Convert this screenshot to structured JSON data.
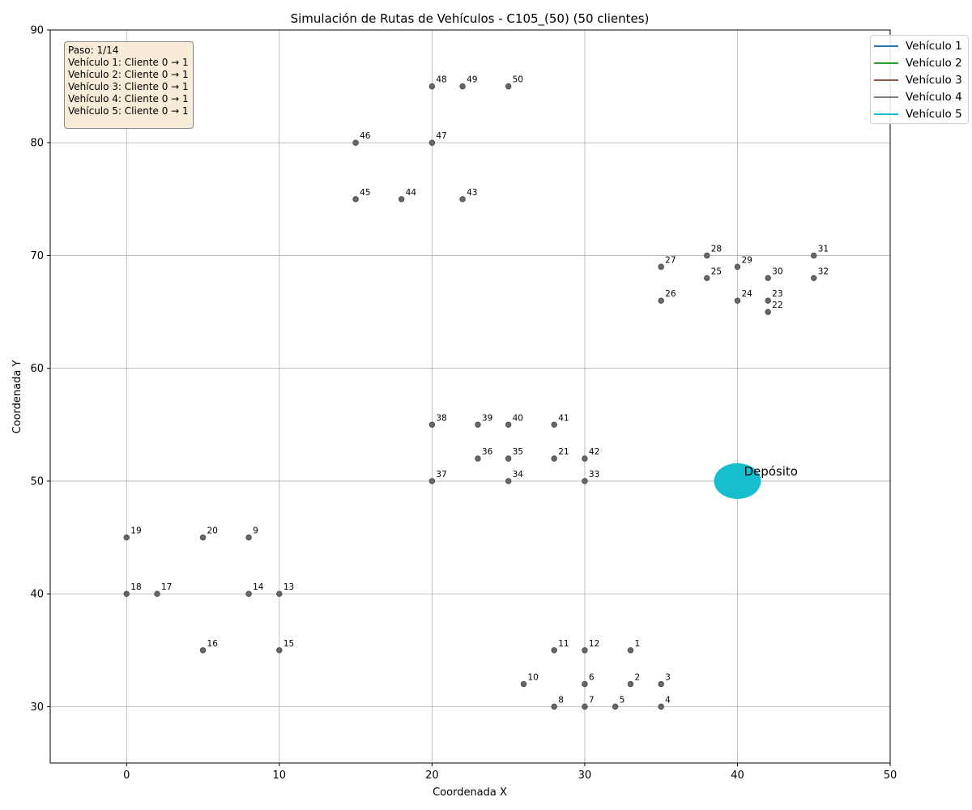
{
  "chart_data": {
    "type": "scatter",
    "title": "Simulación de Rutas de Vehículos - C105_(50) (50 clientes)",
    "xlabel": "Coordenada X",
    "ylabel": "Coordenada Y",
    "xlim": [
      -5,
      50
    ],
    "ylim": [
      25,
      90
    ],
    "xticks": [
      0,
      10,
      20,
      30,
      40,
      50
    ],
    "yticks": [
      30,
      40,
      50,
      60,
      70,
      80,
      90
    ],
    "grid": true,
    "point_color": "#666666",
    "depot": {
      "x": 40,
      "y": 50,
      "label": "Depósito",
      "color": "#17becf"
    },
    "points": [
      {
        "id": "1",
        "x": 33,
        "y": 35
      },
      {
        "id": "2",
        "x": 33,
        "y": 32
      },
      {
        "id": "3",
        "x": 35,
        "y": 32
      },
      {
        "id": "4",
        "x": 35,
        "y": 30
      },
      {
        "id": "5",
        "x": 32,
        "y": 30
      },
      {
        "id": "6",
        "x": 30,
        "y": 32
      },
      {
        "id": "7",
        "x": 30,
        "y": 30
      },
      {
        "id": "8",
        "x": 28,
        "y": 30
      },
      {
        "id": "9",
        "x": 8,
        "y": 45
      },
      {
        "id": "10",
        "x": 26,
        "y": 32
      },
      {
        "id": "11",
        "x": 28,
        "y": 35
      },
      {
        "id": "12",
        "x": 30,
        "y": 35
      },
      {
        "id": "13",
        "x": 10,
        "y": 40
      },
      {
        "id": "14",
        "x": 8,
        "y": 40
      },
      {
        "id": "15",
        "x": 10,
        "y": 35
      },
      {
        "id": "16",
        "x": 5,
        "y": 35
      },
      {
        "id": "17",
        "x": 2,
        "y": 40
      },
      {
        "id": "18",
        "x": 0,
        "y": 40
      },
      {
        "id": "19",
        "x": 0,
        "y": 45
      },
      {
        "id": "20",
        "x": 5,
        "y": 45
      },
      {
        "id": "21",
        "x": 28,
        "y": 52
      },
      {
        "id": "22",
        "x": 42,
        "y": 65
      },
      {
        "id": "23",
        "x": 42,
        "y": 66
      },
      {
        "id": "24",
        "x": 40,
        "y": 66
      },
      {
        "id": "25",
        "x": 38,
        "y": 68
      },
      {
        "id": "26",
        "x": 35,
        "y": 66
      },
      {
        "id": "27",
        "x": 35,
        "y": 69
      },
      {
        "id": "28",
        "x": 38,
        "y": 70
      },
      {
        "id": "29",
        "x": 40,
        "y": 69
      },
      {
        "id": "30",
        "x": 42,
        "y": 68
      },
      {
        "id": "31",
        "x": 45,
        "y": 70
      },
      {
        "id": "32",
        "x": 45,
        "y": 68
      },
      {
        "id": "33",
        "x": 30,
        "y": 50
      },
      {
        "id": "34",
        "x": 25,
        "y": 50
      },
      {
        "id": "35",
        "x": 25,
        "y": 52
      },
      {
        "id": "36",
        "x": 23,
        "y": 52
      },
      {
        "id": "37",
        "x": 20,
        "y": 50
      },
      {
        "id": "38",
        "x": 20,
        "y": 55
      },
      {
        "id": "39",
        "x": 23,
        "y": 55
      },
      {
        "id": "40",
        "x": 25,
        "y": 55
      },
      {
        "id": "41",
        "x": 28,
        "y": 55
      },
      {
        "id": "42",
        "x": 30,
        "y": 52
      },
      {
        "id": "43",
        "x": 22,
        "y": 75
      },
      {
        "id": "44",
        "x": 18,
        "y": 75
      },
      {
        "id": "45",
        "x": 15,
        "y": 75
      },
      {
        "id": "46",
        "x": 15,
        "y": 80
      },
      {
        "id": "47",
        "x": 20,
        "y": 80
      },
      {
        "id": "48",
        "x": 20,
        "y": 85
      },
      {
        "id": "49",
        "x": 22,
        "y": 85
      },
      {
        "id": "50",
        "x": 25,
        "y": 85
      }
    ],
    "legend": {
      "placement": "top-right",
      "entries": [
        {
          "name": "Vehículo 1",
          "color": "#1f77b4"
        },
        {
          "name": "Vehículo 2",
          "color": "#2ca02c"
        },
        {
          "name": "Vehículo 3",
          "color": "#8c564b"
        },
        {
          "name": "Vehículo 4",
          "color": "#7f7f7f"
        },
        {
          "name": "Vehículo 5",
          "color": "#17becf"
        }
      ]
    },
    "annotation": [
      "Paso: 1/14",
      "Vehículo 1: Cliente 0 → 1",
      "Vehículo 2: Cliente 0 → 1",
      "Vehículo 3: Cliente 0 → 1",
      "Vehículo 4: Cliente 0 → 1",
      "Vehículo 5: Cliente 0 → 1"
    ]
  }
}
